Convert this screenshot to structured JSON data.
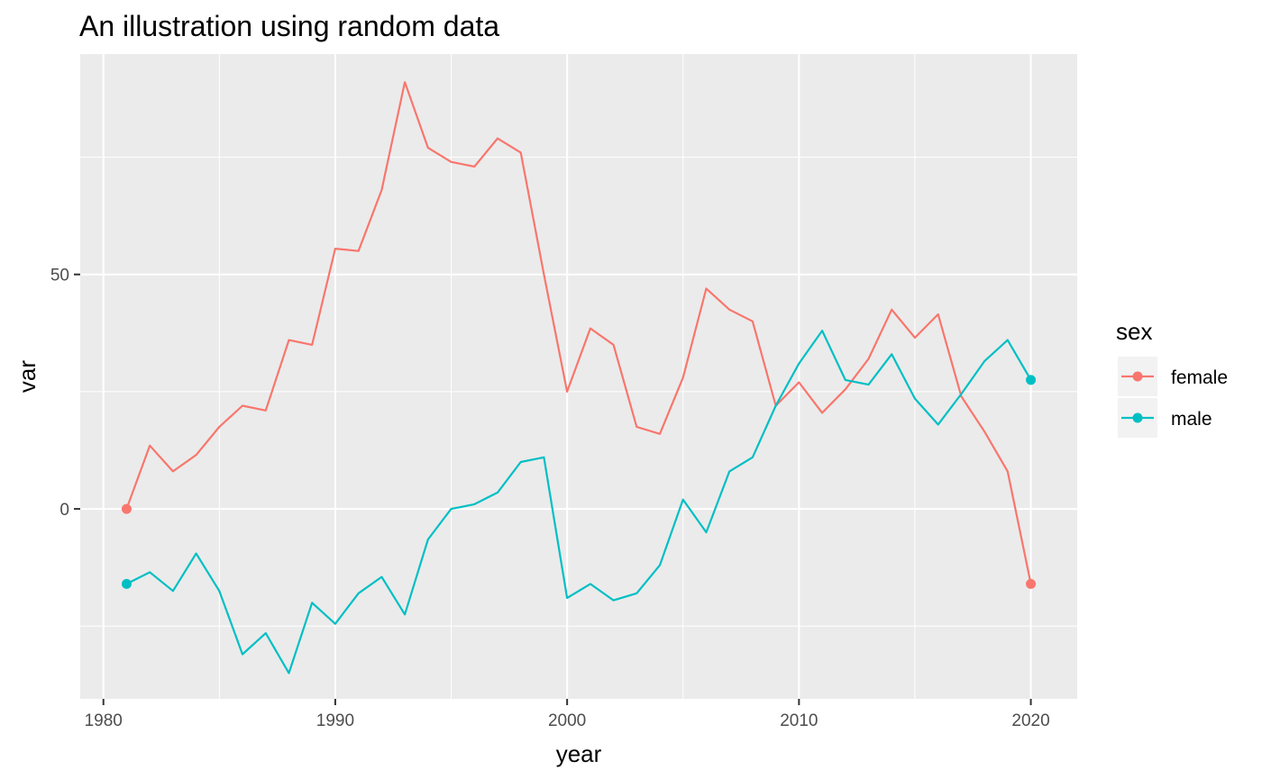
{
  "chart_data": {
    "type": "line",
    "title": "An illustration using random data",
    "xlabel": "year",
    "ylabel": "var",
    "xlim": [
      1979,
      2022
    ],
    "ylim": [
      -40.5,
      97
    ],
    "x_ticks": [
      1980,
      1990,
      2000,
      2010,
      2020
    ],
    "x_minor_ticks": [
      1985,
      1995,
      2005,
      2015
    ],
    "y_ticks": [
      0,
      50
    ],
    "y_minor_ticks": [
      -25,
      25,
      75
    ],
    "grid": true,
    "legend": {
      "title": "sex",
      "position": "right"
    },
    "x": [
      1981,
      1982,
      1983,
      1984,
      1985,
      1986,
      1987,
      1988,
      1989,
      1990,
      1991,
      1992,
      1993,
      1994,
      1995,
      1996,
      1997,
      1998,
      1999,
      2000,
      2001,
      2002,
      2003,
      2004,
      2005,
      2006,
      2007,
      2008,
      2009,
      2010,
      2011,
      2012,
      2013,
      2014,
      2015,
      2016,
      2017,
      2018,
      2019,
      2020
    ],
    "series": [
      {
        "name": "female",
        "color": "#F8766D",
        "values": [
          0,
          13.5,
          8,
          11.5,
          17.5,
          22,
          21,
          36,
          35,
          55.5,
          55,
          68,
          91,
          77,
          74,
          73,
          79,
          76,
          50,
          25,
          38.5,
          35,
          17.5,
          16,
          28,
          47,
          42.5,
          40,
          22,
          27,
          20.5,
          25.5,
          32,
          42.5,
          36.5,
          41.5,
          24,
          16.5,
          8,
          -16
        ],
        "endpoints": [
          0,
          39
        ]
      },
      {
        "name": "male",
        "color": "#00BFC4",
        "values": [
          -16,
          -13.5,
          -17.5,
          -9.5,
          -17.5,
          -31,
          -26.5,
          -35,
          -20,
          -24.5,
          -18,
          -14.5,
          -22.5,
          -6.5,
          0,
          1,
          3.5,
          10,
          11,
          -19,
          -16,
          -19.5,
          -18,
          -12,
          2,
          -5,
          8,
          11,
          22,
          31,
          38,
          27.5,
          26.5,
          33,
          23.5,
          18,
          24.5,
          31.5,
          36,
          27.5
        ],
        "endpoints": [
          0,
          39
        ]
      }
    ]
  }
}
